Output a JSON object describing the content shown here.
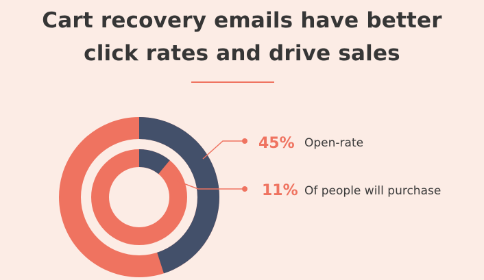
{
  "title_line1": "Cart recovery emails have better",
  "title_line2": "click rates and drive sales",
  "colors": {
    "background": "#fcece5",
    "accent": "#ef7360",
    "dark": "#43506a"
  },
  "chart_data": {
    "type": "donut",
    "series": [
      {
        "value": 45,
        "value_label": "45%",
        "label": "Open-rate"
      },
      {
        "value": 11,
        "value_label": "11%",
        "label": "Of people will purchase"
      }
    ]
  }
}
